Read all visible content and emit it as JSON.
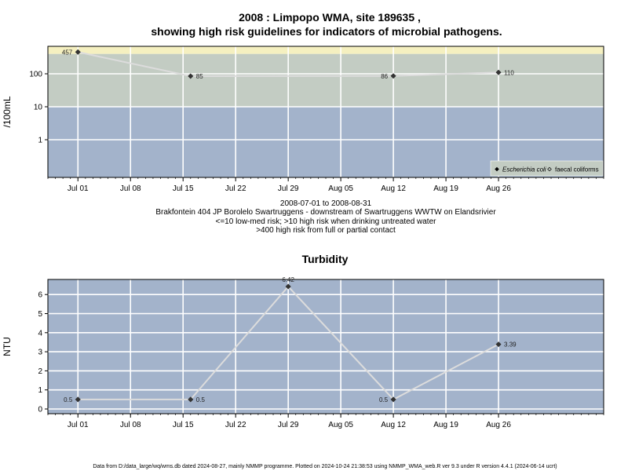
{
  "chart_data": [
    {
      "type": "line",
      "title_lines": [
        "2008 : Limpopo WMA, site 189635 ,",
        "showing high risk guidelines for indicators of microbial pathogens."
      ],
      "ylabel": "/100mL",
      "y_scale": "log",
      "y_ticks": [
        1,
        10,
        100
      ],
      "y_tick_labels": [
        "1",
        "10",
        "100"
      ],
      "xlim": [
        "2008-06-27",
        "2008-09-09"
      ],
      "x_ticks": [
        "2008-07-01",
        "2008-07-08",
        "2008-07-15",
        "2008-07-22",
        "2008-07-29",
        "2008-08-05",
        "2008-08-12",
        "2008-08-19",
        "2008-08-26"
      ],
      "x_tick_labels": [
        "Jul 01",
        "Jul 08",
        "Jul 15",
        "Jul 22",
        "Jul 29",
        "Aug 05",
        "Aug 12",
        "Aug 19",
        "Aug 26"
      ],
      "bands": [
        {
          "from": 400,
          "color": "#f5f0c0"
        },
        {
          "from": 10,
          "to": 400,
          "color": "#c3ccc3"
        },
        {
          "to": 10,
          "color": "#a3b3cb"
        }
      ],
      "series": [
        {
          "name": "Escherichia coli",
          "color": "#333333",
          "x": [
            "2008-07-01",
            "2008-07-16",
            "2008-08-12",
            "2008-08-26"
          ],
          "y": [
            457,
            85,
            86,
            110
          ],
          "labels": [
            "457",
            "85",
            "86",
            "110"
          ],
          "label_side": [
            "left",
            "right",
            "left",
            "right"
          ]
        }
      ],
      "legend": {
        "position": "bottom-right",
        "items": [
          {
            "label": "Escherichia coli",
            "marker": "filled-diamond",
            "italic": true
          },
          {
            "label": "faecal coliforms",
            "marker": "open-diamond",
            "italic": false
          }
        ]
      },
      "subtitle_lines": [
        "2008-07-01 to 2008-08-31",
        "Brakfontein 404 JP Borolelo Swartruggens - downstream of Swartruggens WWTW on Elandsrivier",
        "<=10 low-med risk; >10 high risk when drinking untreated water",
        ">400 high risk from full or partial contact"
      ]
    },
    {
      "type": "line",
      "title": "Turbidity",
      "ylabel": "NTU",
      "ylim": [
        -0.3,
        6.8
      ],
      "y_ticks": [
        0,
        1,
        2,
        3,
        4,
        5,
        6
      ],
      "xlim": [
        "2008-06-27",
        "2008-09-09"
      ],
      "x_ticks": [
        "2008-07-01",
        "2008-07-08",
        "2008-07-15",
        "2008-07-22",
        "2008-07-29",
        "2008-08-05",
        "2008-08-12",
        "2008-08-19",
        "2008-08-26"
      ],
      "x_tick_labels": [
        "Jul 01",
        "Jul 08",
        "Jul 15",
        "Jul 22",
        "Jul 29",
        "Aug 05",
        "Aug 12",
        "Aug 19",
        "Aug 26"
      ],
      "background": "#a3b3cb",
      "series": [
        {
          "color": "#333333",
          "x": [
            "2008-07-01",
            "2008-07-16",
            "2008-07-29",
            "2008-08-12",
            "2008-08-26"
          ],
          "y": [
            0.5,
            0.5,
            6.42,
            0.5,
            3.39
          ],
          "labels": [
            "0.5",
            "0.5",
            "6.42",
            "0.5",
            "3.39"
          ],
          "label_side": [
            "left",
            "right",
            "top",
            "left",
            "right"
          ]
        }
      ]
    }
  ],
  "footer": "Data from D:/data_large/wq/wms.db dated 2024-08-27, mainly NMMP programme. Plotted on 2024-10-24 21:38:53 using NMMP_WMA_web.R ver 9.3 under R version 4.4.1 (2024-06-14 ucrt)"
}
